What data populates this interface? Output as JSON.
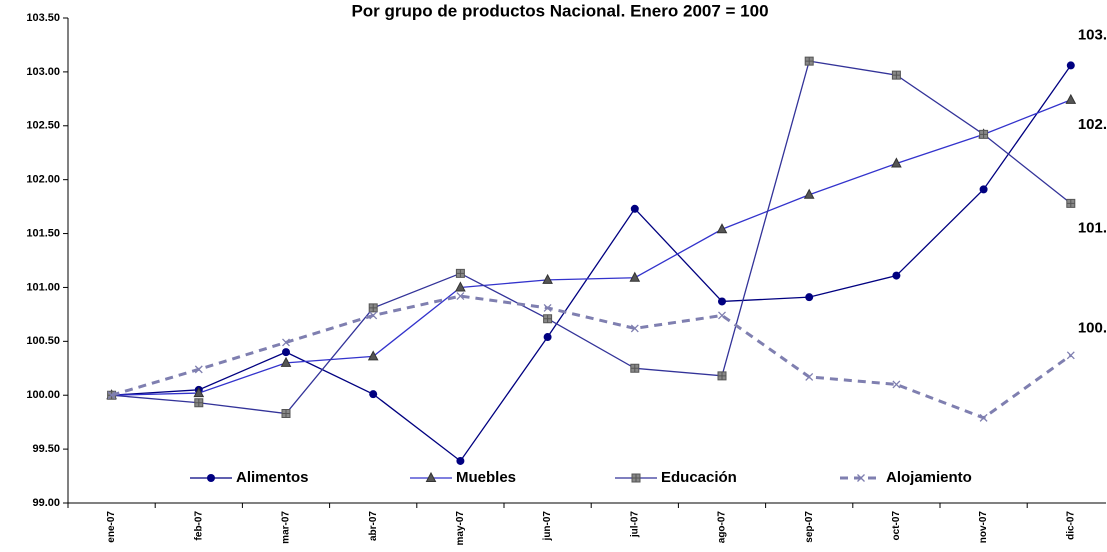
{
  "chart_data": {
    "type": "line",
    "title": "Por grupo de productos Nacional. Enero 2007 = 100",
    "categories": [
      "ene-07",
      "feb-07",
      "mar-07",
      "abr-07",
      "may-07",
      "jun-07",
      "jul-07",
      "ago-07",
      "sep-07",
      "oct-07",
      "nov-07",
      "dic-07"
    ],
    "series": [
      {
        "name": "Alimentos",
        "color": "#000080",
        "marker": "circle",
        "dash": false,
        "values": [
          100.0,
          100.05,
          100.4,
          100.01,
          99.39,
          100.54,
          101.73,
          100.87,
          100.91,
          101.11,
          101.91,
          103.06
        ]
      },
      {
        "name": "Muebles",
        "color": "#3333cc",
        "marker": "triangle",
        "dash": false,
        "values": [
          100.0,
          100.02,
          100.3,
          100.36,
          101.0,
          101.07,
          101.09,
          101.54,
          101.86,
          102.15,
          102.42,
          102.74
        ]
      },
      {
        "name": "Educación",
        "color": "#333399",
        "marker": "square",
        "dash": false,
        "values": [
          100.0,
          99.93,
          99.83,
          100.81,
          101.13,
          100.71,
          100.25,
          100.18,
          103.1,
          102.97,
          102.42,
          101.78
        ]
      },
      {
        "name": "Alojamiento",
        "color": "#7f7fb0",
        "marker": "x",
        "dash": true,
        "values": [
          100.0,
          100.24,
          100.49,
          100.74,
          100.92,
          100.81,
          100.62,
          100.74,
          100.17,
          100.1,
          99.79,
          100.37
        ]
      }
    ],
    "ylim": [
      99.0,
      103.5
    ],
    "yticks": [
      {
        "value": 99.0,
        "label": "99.00"
      },
      {
        "value": 99.5,
        "label": "99.50"
      },
      {
        "value": 100.0,
        "label": "100.00"
      },
      {
        "value": 100.5,
        "label": "100.50"
      },
      {
        "value": 101.0,
        "label": "101.00"
      },
      {
        "value": 101.5,
        "label": "101.50"
      },
      {
        "value": 102.0,
        "label": "102.00"
      },
      {
        "value": 102.5,
        "label": "102.50"
      },
      {
        "value": 103.0,
        "label": "103.00"
      },
      {
        "value": 103.5,
        "label": "103.50"
      }
    ],
    "grid": false,
    "legend": "bottom"
  }
}
